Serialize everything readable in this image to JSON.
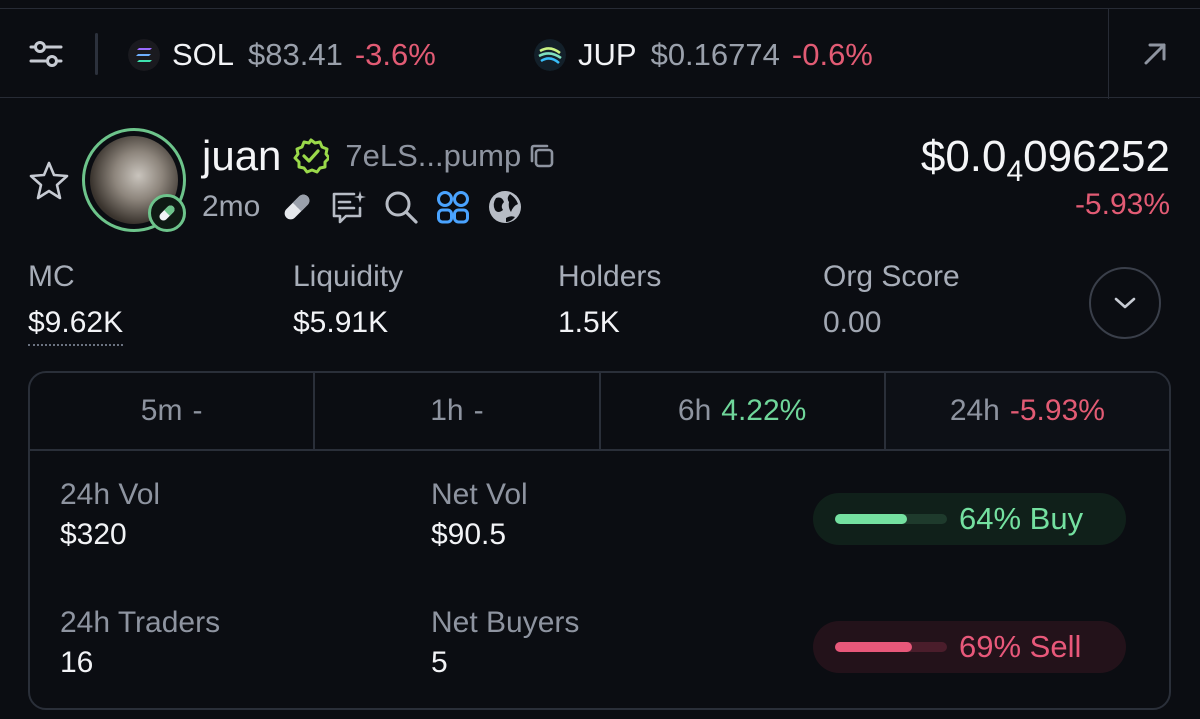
{
  "ticker": {
    "tokens": [
      {
        "symbol": "SOL",
        "price": "$83.41",
        "change": "-3.6%",
        "icon": "solana-logo-icon"
      },
      {
        "symbol": "JUP",
        "price": "$0.16774",
        "change": "-0.6%",
        "icon": "jupiter-logo-icon"
      }
    ]
  },
  "token": {
    "name": "juan",
    "address": "7eLS...pump",
    "age": "2mo",
    "price_main": "$0.0",
    "price_sub": "4",
    "price_rest": "096252",
    "price_change": "-5.93%"
  },
  "stats": {
    "mc": {
      "label": "MC",
      "value": "$9.62K"
    },
    "liquidity": {
      "label": "Liquidity",
      "value": "$5.91K"
    },
    "holders": {
      "label": "Holders",
      "value": "1.5K"
    },
    "org_score": {
      "label": "Org Score",
      "value": "0.00"
    }
  },
  "timeframes": [
    {
      "label": "5m",
      "value": "-"
    },
    {
      "label": "1h",
      "value": "-"
    },
    {
      "label": "6h",
      "value": "4.22%"
    },
    {
      "label": "24h",
      "value": "-5.93%"
    }
  ],
  "metrics": {
    "vol": {
      "label": "24h Vol",
      "value": "$320"
    },
    "net_vol": {
      "label": "Net Vol",
      "value": "$90.5"
    },
    "traders": {
      "label": "24h Traders",
      "value": "16"
    },
    "net_buyers": {
      "label": "Net Buyers",
      "value": "5"
    }
  },
  "ratios": {
    "buy": {
      "label": "64% Buy",
      "fraction": 0.64
    },
    "sell": {
      "label": "69% Sell",
      "fraction": 0.69
    }
  },
  "colors": {
    "positive": "#6fd69a",
    "negative": "#e25b74",
    "accent_green": "#6dc48b",
    "link_blue": "#4aa3ff"
  }
}
